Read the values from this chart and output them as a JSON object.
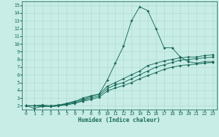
{
  "xlabel": "Humidex (Indice chaleur)",
  "bg_color": "#c8ece6",
  "line_color": "#1a6b5a",
  "grid_color": "#a8d8d0",
  "xlim": [
    -0.5,
    23.5
  ],
  "ylim": [
    1.5,
    15.5
  ],
  "xticks": [
    0,
    1,
    2,
    3,
    4,
    5,
    6,
    7,
    8,
    9,
    10,
    11,
    12,
    13,
    14,
    15,
    16,
    17,
    18,
    19,
    20,
    21,
    22,
    23
  ],
  "yticks": [
    2,
    3,
    4,
    5,
    6,
    7,
    8,
    9,
    10,
    11,
    12,
    13,
    14,
    15
  ],
  "series": [
    [
      2.0,
      1.7,
      1.9,
      1.9,
      2.0,
      2.3,
      2.5,
      3.0,
      3.3,
      3.5,
      5.3,
      7.5,
      9.7,
      13.0,
      14.8,
      14.3,
      12.0,
      9.5,
      9.5,
      8.3,
      7.7,
      7.5,
      7.7,
      7.7
    ],
    [
      2.0,
      2.0,
      2.1,
      2.0,
      2.1,
      2.3,
      2.6,
      2.8,
      3.2,
      3.5,
      4.5,
      5.0,
      5.5,
      6.0,
      6.5,
      7.2,
      7.5,
      7.8,
      8.0,
      8.2,
      8.3,
      8.3,
      8.5,
      8.6
    ],
    [
      2.0,
      2.0,
      2.0,
      1.9,
      2.0,
      2.2,
      2.4,
      2.7,
      3.0,
      3.3,
      4.2,
      4.7,
      5.0,
      5.5,
      6.0,
      6.5,
      7.0,
      7.3,
      7.6,
      7.9,
      8.0,
      8.1,
      8.2,
      8.3
    ],
    [
      2.0,
      2.0,
      1.9,
      1.9,
      2.0,
      2.1,
      2.3,
      2.6,
      2.8,
      3.1,
      3.9,
      4.3,
      4.6,
      5.0,
      5.5,
      5.9,
      6.3,
      6.7,
      7.0,
      7.2,
      7.3,
      7.4,
      7.5,
      7.6
    ]
  ],
  "tick_fontsize": 5.0,
  "xlabel_fontsize": 6.0,
  "marker_size": 1.8,
  "linewidth": 0.7
}
